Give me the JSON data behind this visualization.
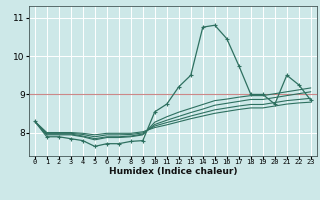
{
  "xlabel": "Humidex (Indice chaleur)",
  "background_color": "#cde8e8",
  "grid_color": "#b0d0d0",
  "line_color": "#2e7060",
  "red_line_y": 9,
  "red_line_color": "#cc8888",
  "x_ticks": [
    0,
    1,
    2,
    3,
    4,
    5,
    6,
    7,
    8,
    9,
    10,
    11,
    12,
    13,
    14,
    15,
    16,
    17,
    18,
    19,
    20,
    21,
    22,
    23
  ],
  "ylim": [
    7.4,
    11.3
  ],
  "xlim": [
    -0.5,
    23.5
  ],
  "yticks": [
    8,
    9,
    10,
    11
  ],
  "lines": [
    [
      8.3,
      7.9,
      7.9,
      7.85,
      7.8,
      7.65,
      7.72,
      7.72,
      7.78,
      7.8,
      8.55,
      8.75,
      9.2,
      9.5,
      10.75,
      10.8,
      10.45,
      9.75,
      9.0,
      9.0,
      8.75,
      9.5,
      9.25,
      8.85
    ],
    [
      8.3,
      7.95,
      7.95,
      7.95,
      7.9,
      7.82,
      7.88,
      7.88,
      7.9,
      7.95,
      8.28,
      8.42,
      8.54,
      8.64,
      8.74,
      8.84,
      8.88,
      8.93,
      8.97,
      8.97,
      9.02,
      9.07,
      9.12,
      9.17
    ],
    [
      8.3,
      7.97,
      7.97,
      7.97,
      7.92,
      7.85,
      7.9,
      7.9,
      7.92,
      7.97,
      8.22,
      8.33,
      8.43,
      8.53,
      8.62,
      8.72,
      8.77,
      8.82,
      8.87,
      8.87,
      8.92,
      8.97,
      9.02,
      9.07
    ],
    [
      8.3,
      7.99,
      7.99,
      7.99,
      7.96,
      7.9,
      7.95,
      7.95,
      7.96,
      8.0,
      8.18,
      8.27,
      8.35,
      8.44,
      8.52,
      8.6,
      8.65,
      8.7,
      8.74,
      8.74,
      8.79,
      8.84,
      8.87,
      8.9
    ],
    [
      8.3,
      8.01,
      8.01,
      8.01,
      7.99,
      7.95,
      7.99,
      7.99,
      7.99,
      8.03,
      8.14,
      8.21,
      8.29,
      8.37,
      8.44,
      8.51,
      8.56,
      8.61,
      8.65,
      8.65,
      8.7,
      8.75,
      8.78,
      8.8
    ]
  ]
}
